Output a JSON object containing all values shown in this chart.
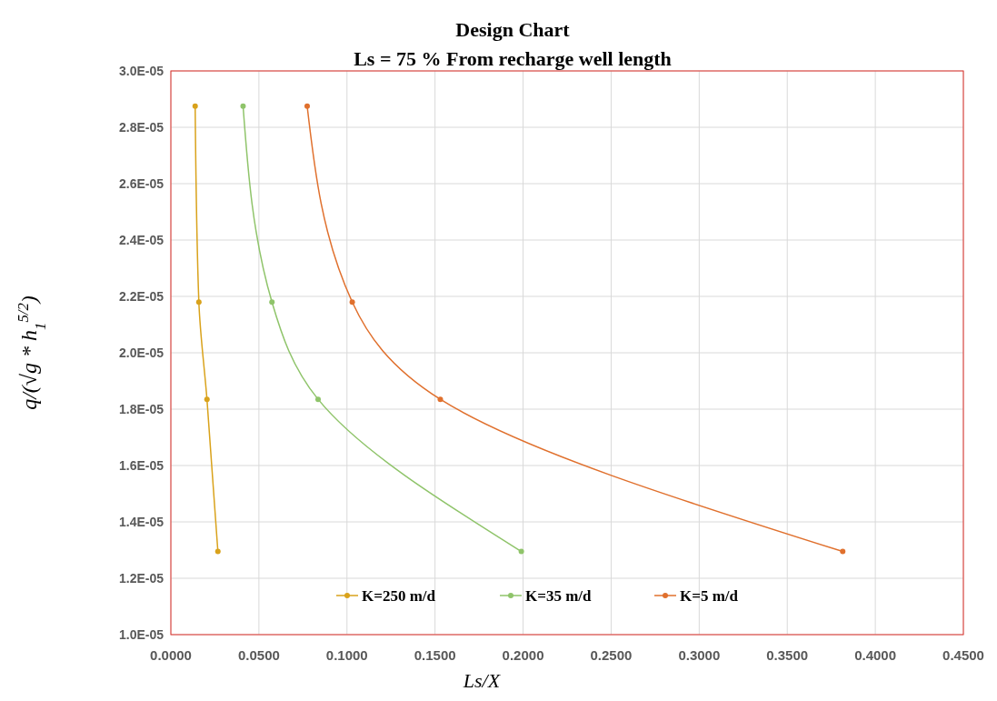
{
  "chart_data": {
    "type": "line",
    "title": "Design Chart",
    "subtitle": "Ls = 75 % From recharge well length",
    "xlabel": "Ls/X",
    "ylabel": "q/(√g * h$_{1}$$^{5/2}$)",
    "series": [
      {
        "name": "K=250 m/d",
        "color": "#d9a21b",
        "x": [
          0.0138,
          0.0159,
          0.0205,
          0.0267
        ],
        "values": [
          2.875e-05,
          2.18e-05,
          1.835e-05,
          1.295e-05
        ]
      },
      {
        "name": "K=35 m/d",
        "color": "#8fc46a",
        "x": [
          0.041,
          0.0574,
          0.0836,
          0.199
        ],
        "values": [
          2.875e-05,
          2.18e-05,
          1.835e-05,
          1.295e-05
        ]
      },
      {
        "name": "K=5 m/d",
        "color": "#e0702d",
        "x": [
          0.0774,
          0.103,
          0.153,
          0.3815
        ],
        "values": [
          2.875e-05,
          2.18e-05,
          1.835e-05,
          1.295e-05
        ]
      }
    ],
    "xlim": [
      0,
      0.45
    ],
    "xticks": [
      {
        "value": 0,
        "label": "0.0000"
      },
      {
        "value": 0.05,
        "label": "0.0500"
      },
      {
        "value": 0.1,
        "label": "0.1000"
      },
      {
        "value": 0.15,
        "label": "0.1500"
      },
      {
        "value": 0.2,
        "label": "0.2000"
      },
      {
        "value": 0.25,
        "label": "0.2500"
      },
      {
        "value": 0.3,
        "label": "0.3000"
      },
      {
        "value": 0.35,
        "label": "0.3500"
      },
      {
        "value": 0.4,
        "label": "0.4000"
      },
      {
        "value": 0.45,
        "label": "0.4500"
      }
    ],
    "ylim": [
      1e-05,
      3e-05
    ],
    "yticks": [
      {
        "value": 1e-05,
        "label": "1.0E-05"
      },
      {
        "value": 1.2e-05,
        "label": "1.2E-05"
      },
      {
        "value": 1.4e-05,
        "label": "1.4E-05"
      },
      {
        "value": 1.6e-05,
        "label": "1.6E-05"
      },
      {
        "value": 1.8e-05,
        "label": "1.8E-05"
      },
      {
        "value": 2e-05,
        "label": "2.0E-05"
      },
      {
        "value": 2.2e-05,
        "label": "2.2E-05"
      },
      {
        "value": 2.4e-05,
        "label": "2.4E-05"
      },
      {
        "value": 2.6e-05,
        "label": "2.6E-05"
      },
      {
        "value": 2.8e-05,
        "label": "2.8E-05"
      },
      {
        "value": 3e-05,
        "label": "3.0E-05"
      }
    ],
    "grid": true,
    "legend": "bottom",
    "marker": "circle",
    "line_style": "solid"
  }
}
